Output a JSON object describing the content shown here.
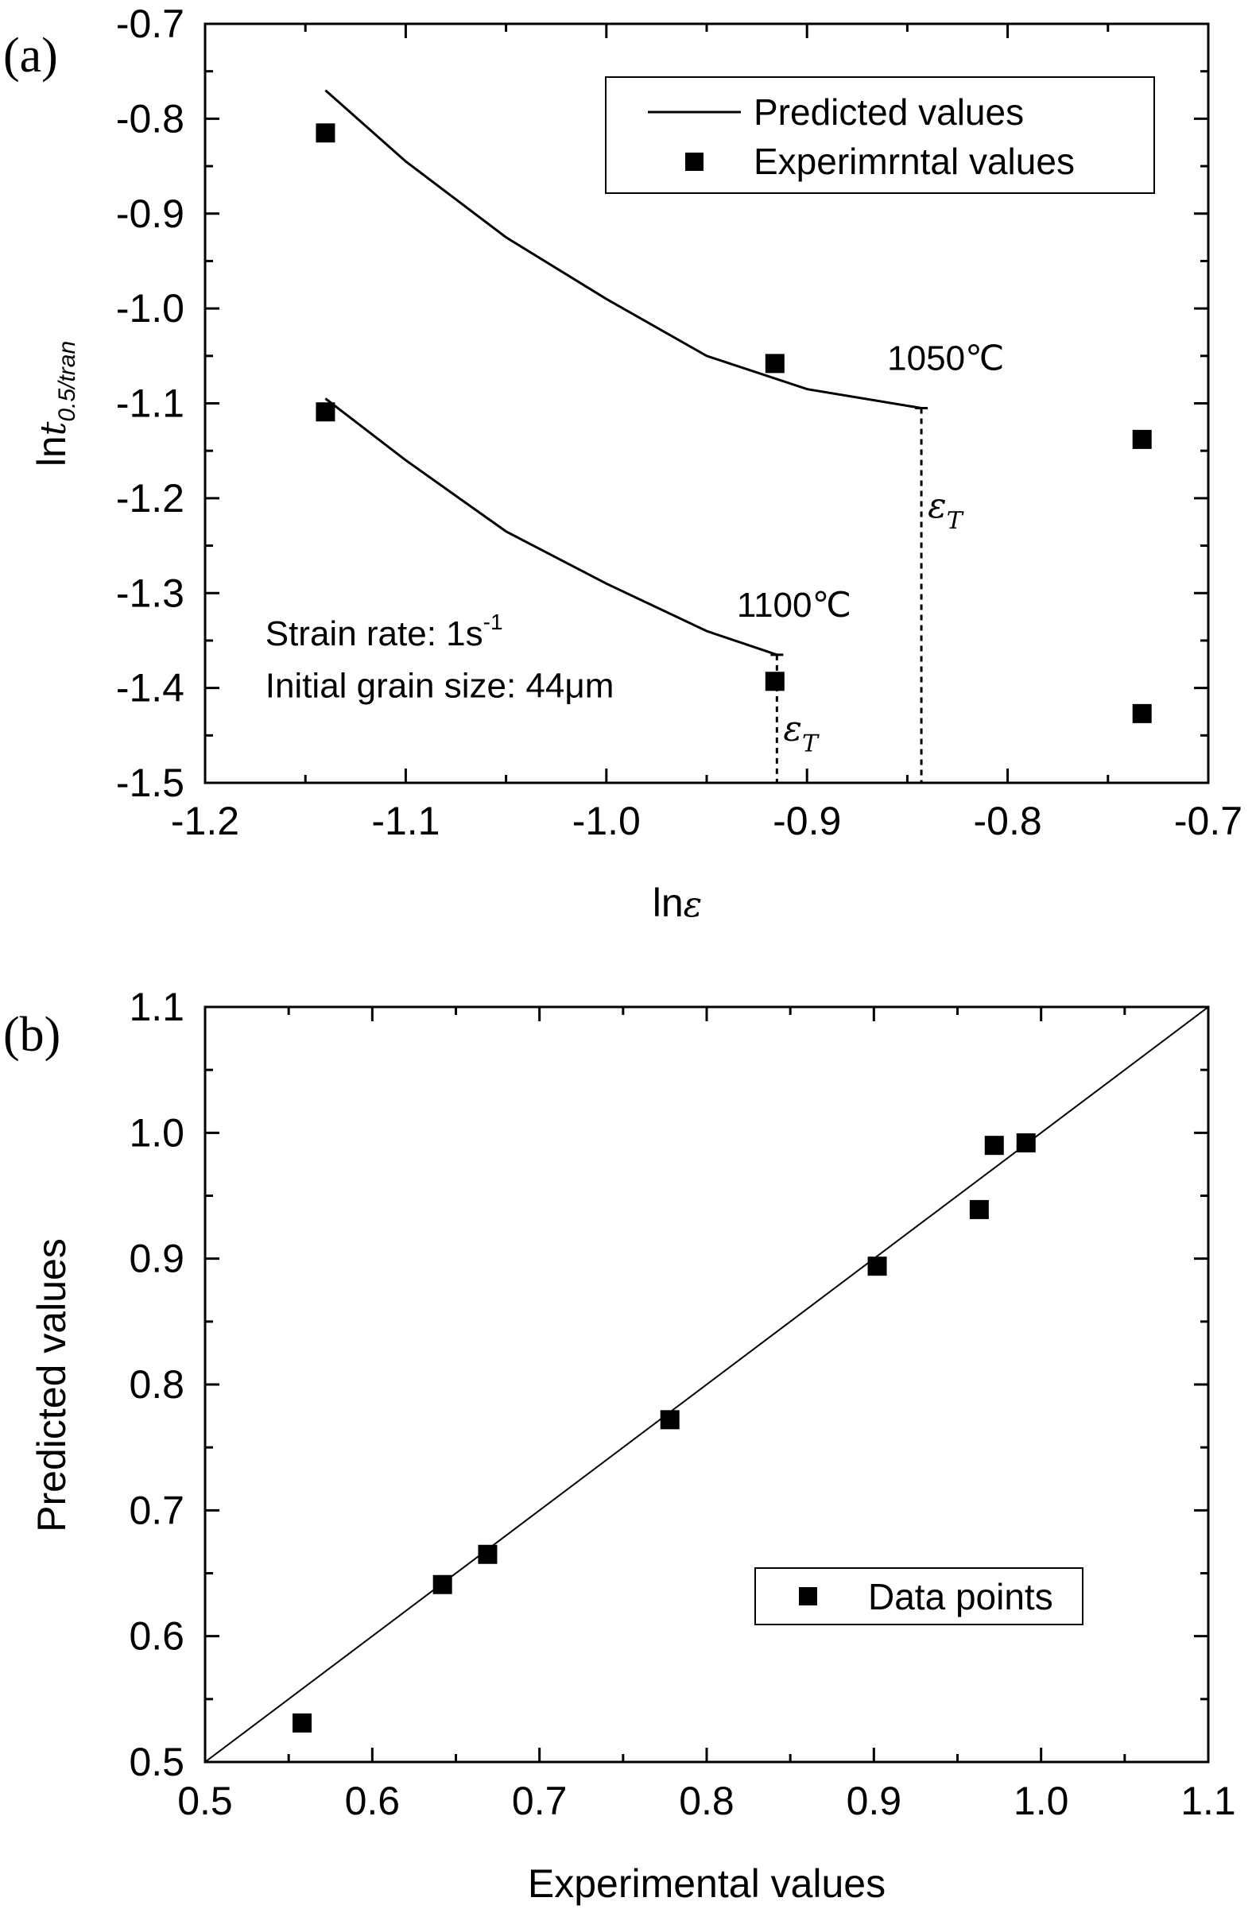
{
  "chart_data": [
    {
      "panel_label": "(a)",
      "type": "line",
      "title": "",
      "xlabel_prefix": "ln",
      "xlabel_symbol": "ε",
      "ylabel_prefix": "ln",
      "ylabel_symbol": "t",
      "ylabel_subscript": "0.5/tran",
      "xlim": [
        -1.2,
        -0.7
      ],
      "ylim": [
        -1.5,
        -0.7
      ],
      "x_major_ticks": [
        -1.2,
        -1.1,
        -1.0,
        -0.9,
        -0.8,
        -0.7
      ],
      "x_tick_labels": [
        "-1.2",
        "-1.1",
        "-1.0",
        "-0.9",
        "-0.8",
        "-0.7"
      ],
      "y_major_ticks": [
        -1.5,
        -1.4,
        -1.3,
        -1.2,
        -1.1,
        -1.0,
        -0.9,
        -0.8,
        -0.7
      ],
      "y_tick_labels": [
        "-1.5",
        "-1.4",
        "-1.3",
        "-1.2",
        "-1.1",
        "-1.0",
        "-0.9",
        "-0.8",
        "-0.7"
      ],
      "legend": {
        "position": "top-right",
        "entries": [
          "Predicted values",
          "Experimrntal values"
        ]
      },
      "series": [
        {
          "legend_entry": 0,
          "kind": "line",
          "points": [
            [
              -1.14,
              -0.77
            ],
            [
              -1.1,
              -0.845
            ],
            [
              -1.05,
              -0.925
            ],
            [
              -1.0,
              -0.99
            ],
            [
              -0.95,
              -1.05
            ],
            [
              -0.9,
              -1.085
            ],
            [
              -0.843,
              -1.105
            ]
          ]
        },
        {
          "legend_entry": 0,
          "kind": "line",
          "points": [
            [
              -1.14,
              -1.095
            ],
            [
              -1.1,
              -1.16
            ],
            [
              -1.05,
              -1.235
            ],
            [
              -1.0,
              -1.29
            ],
            [
              -0.95,
              -1.34
            ],
            [
              -0.915,
              -1.365
            ]
          ]
        },
        {
          "legend_entry": 1,
          "kind": "scatter",
          "points": [
            [
              -1.14,
              -0.815
            ],
            [
              -0.916,
              -1.058
            ],
            [
              -0.733,
              -1.138
            ],
            [
              -1.14,
              -1.109
            ],
            [
              -0.916,
              -1.393
            ],
            [
              -0.733,
              -1.427
            ]
          ]
        }
      ],
      "annotations": [
        {
          "text": "1050℃",
          "x": -0.86,
          "y": -1.065
        },
        {
          "text": "1100℃",
          "x": -0.935,
          "y": -1.325
        },
        {
          "text": "Strain rate: 1s",
          "superscript": "-1",
          "x": -1.17,
          "y": -1.355
        },
        {
          "text": "Initial grain size: 44",
          "unit": "μm",
          "x": -1.17,
          "y": -1.41
        }
      ],
      "transition_markers": [
        {
          "x": -0.843,
          "y_top": -1.105,
          "symbol": "ε",
          "subscript": "T",
          "label_y": -1.22
        },
        {
          "x": -0.915,
          "y_top": -1.365,
          "symbol": "ε",
          "subscript": "T",
          "label_y": -1.455
        }
      ]
    },
    {
      "panel_label": "(b)",
      "type": "scatter",
      "title": "",
      "xlabel": "Experimental values",
      "ylabel": "Predicted values",
      "xlim": [
        0.5,
        1.1
      ],
      "ylim": [
        0.5,
        1.1
      ],
      "x_major_ticks": [
        0.5,
        0.6,
        0.7,
        0.8,
        0.9,
        1.0,
        1.1
      ],
      "x_tick_labels": [
        "0.5",
        "0.6",
        "0.7",
        "0.8",
        "0.9",
        "1.0",
        "1.1"
      ],
      "y_major_ticks": [
        0.5,
        0.6,
        0.7,
        0.8,
        0.9,
        1.0,
        1.1
      ],
      "y_tick_labels": [
        "0.5",
        "0.6",
        "0.7",
        "0.8",
        "0.9",
        "1.0",
        "1.1"
      ],
      "legend": {
        "position": "bottom-right",
        "entries": [
          "Data points"
        ]
      },
      "diagonal_line": [
        [
          0.5,
          0.5
        ],
        [
          1.1,
          1.1
        ]
      ],
      "series": [
        {
          "legend_entry": 0,
          "kind": "scatter",
          "points": [
            [
              0.558,
              0.531
            ],
            [
              0.642,
              0.641
            ],
            [
              0.669,
              0.665
            ],
            [
              0.778,
              0.772
            ],
            [
              0.902,
              0.894
            ],
            [
              0.963,
              0.939
            ],
            [
              0.972,
              0.99
            ],
            [
              0.991,
              0.992
            ]
          ]
        }
      ]
    }
  ]
}
